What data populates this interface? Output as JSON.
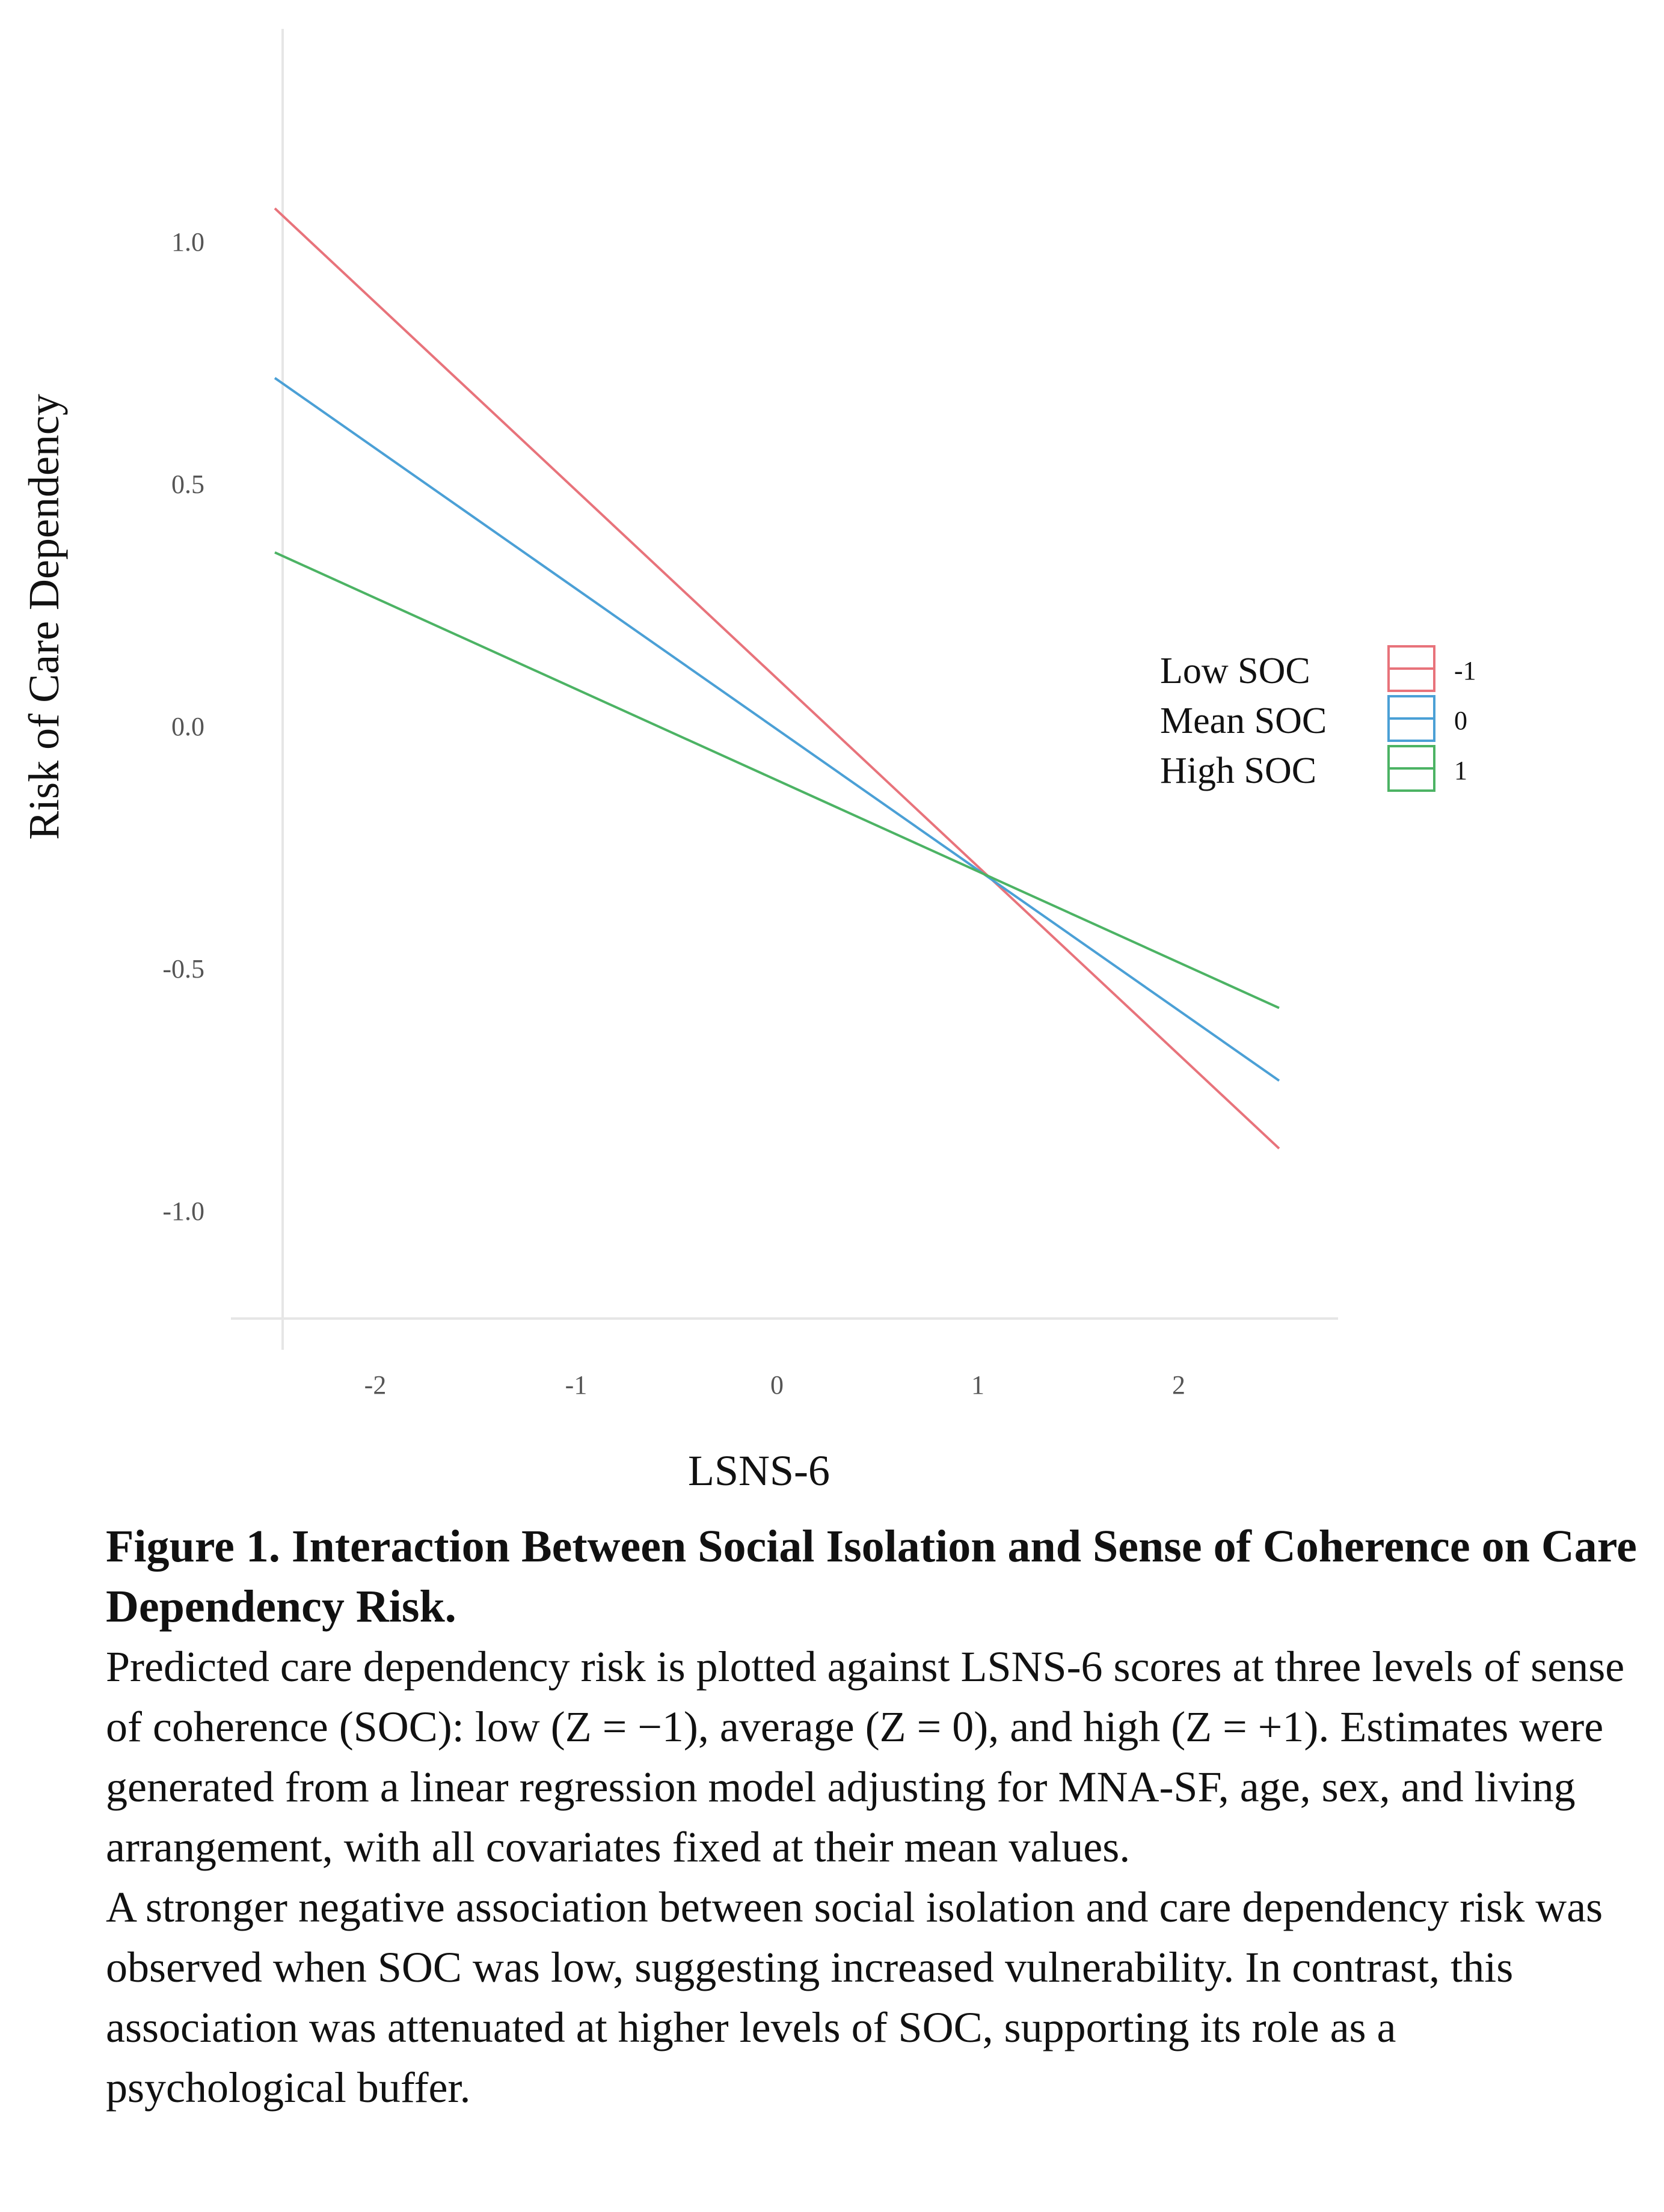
{
  "chart_data": {
    "type": "line",
    "title": "",
    "xlabel": "LSNS-6",
    "ylabel": "Risk of Care Dependency",
    "xlim": [
      -2.5,
      2.75
    ],
    "ylim": [
      -1.22,
      1.5
    ],
    "x_ticks": [
      -2,
      -1,
      0,
      1,
      2
    ],
    "x_tick_labels": [
      "-2",
      "-1",
      "0",
      "1",
      "2"
    ],
    "y_ticks": [
      1.0,
      0.5,
      0.0,
      -0.5,
      -1.0
    ],
    "y_tick_labels": [
      "1.0",
      "0.5",
      "0.0",
      "-0.5",
      "-1.0"
    ],
    "grid": false,
    "legend_position": "right",
    "series": [
      {
        "name": "Low SOC",
        "level": "-1",
        "color": "#e8737b",
        "x": [
          -2.5,
          2.5
        ],
        "values": [
          1.07,
          -0.87
        ]
      },
      {
        "name": "Mean SOC",
        "level": "0",
        "color": "#4ba0d6",
        "x": [
          -2.5,
          2.5
        ],
        "values": [
          0.72,
          -0.73
        ]
      },
      {
        "name": "High SOC",
        "level": "1",
        "color": "#4cb364",
        "x": [
          -2.5,
          2.5
        ],
        "values": [
          0.36,
          -0.58
        ]
      }
    ]
  },
  "caption": {
    "title": "Figure 1. Interaction Between Social Isolation and Sense of Coherence on Care Dependency Risk.",
    "paragraph1": "Predicted care dependency risk is plotted against LSNS-6 scores at three levels of sense of coherence (SOC): low (Z = −1), average (Z = 0), and high (Z = +1). Estimates were generated from a linear regression model adjusting for MNA-SF, age, sex, and living arrangement, with all covariates fixed at their mean values.",
    "paragraph2": "A stronger negative association between social isolation and care dependency risk was observed when SOC was low, suggesting increased vulnerability. In contrast, this association was attenuated at higher levels of SOC, supporting its role as a psychological buffer."
  }
}
